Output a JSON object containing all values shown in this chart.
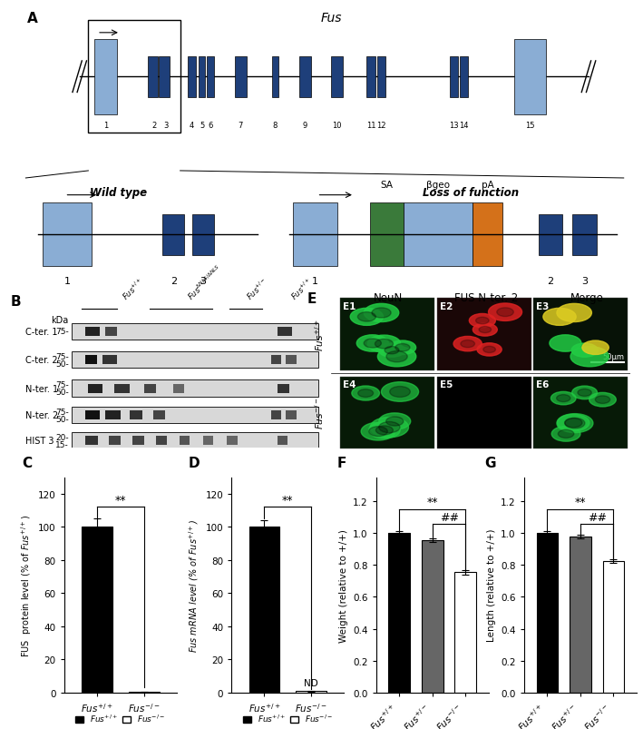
{
  "title_A": "Fus",
  "panel_C_values": [
    100,
    0.5
  ],
  "panel_C_errors": [
    5,
    0.2
  ],
  "panel_C_ylabel": "FUS  protein level (% of Fus+/+)",
  "panel_C_colors": [
    "black",
    "white"
  ],
  "panel_C_yticks": [
    0,
    20,
    40,
    60,
    80,
    100,
    120
  ],
  "panel_D_values": [
    100,
    0.8
  ],
  "panel_D_errors": [
    4,
    0.2
  ],
  "panel_D_ylabel": "Fus mRNA level (% of Fus+/+)",
  "panel_D_colors": [
    "black",
    "white"
  ],
  "panel_D_yticks": [
    0,
    20,
    40,
    60,
    80,
    100,
    120
  ],
  "panel_F_values": [
    1.0,
    0.955,
    0.755
  ],
  "panel_F_errors": [
    0.012,
    0.012,
    0.015
  ],
  "panel_F_ylabel": "Weight (relative to +/+)",
  "panel_F_colors": [
    "black",
    "#666666",
    "white"
  ],
  "panel_F_yticks": [
    0,
    0.2,
    0.4,
    0.6,
    0.8,
    1.0,
    1.2
  ],
  "panel_G_values": [
    1.0,
    0.978,
    0.825
  ],
  "panel_G_errors": [
    0.012,
    0.01,
    0.012
  ],
  "panel_G_ylabel": "Length (relative to +/+)",
  "panel_G_colors": [
    "black",
    "#666666",
    "white"
  ],
  "panel_G_yticks": [
    0,
    0.2,
    0.4,
    0.6,
    0.8,
    1.0,
    1.2
  ],
  "dark_blue": "#1e3f7a",
  "light_blue": "#8aadd4",
  "green_color": "#3a7a3a",
  "orange_color": "#d4711a"
}
